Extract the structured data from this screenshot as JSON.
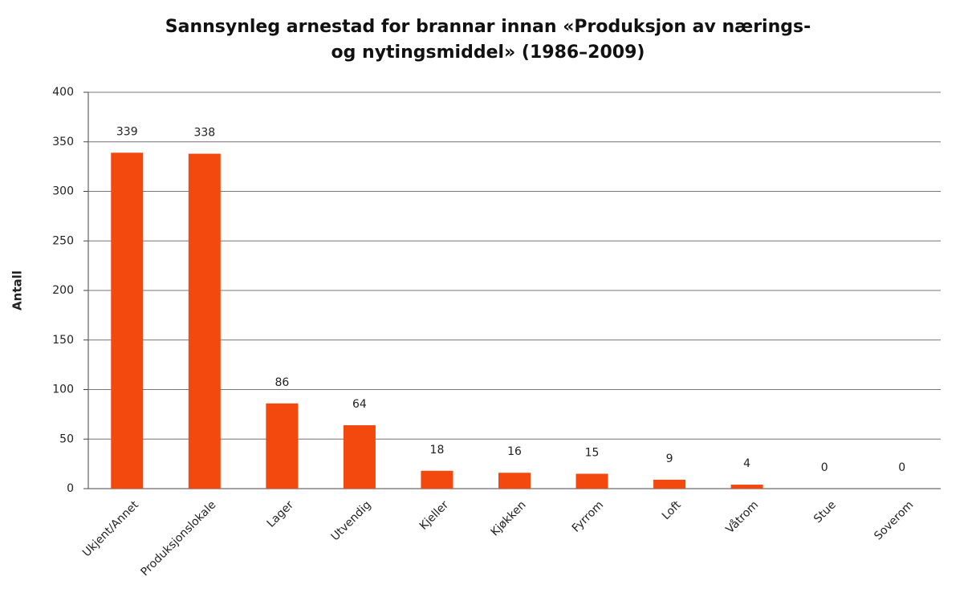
{
  "chart_data": {
    "type": "bar",
    "title": [
      "Sannsynleg arnestad for brannar innan «Produksjon av nærings-",
      "og nytingsmiddel» (1986–2009)"
    ],
    "y_label": "Antall",
    "categories": [
      "Ukjent/Annet",
      "Produksjonslokale",
      "Lager",
      "Utvendig",
      "Kjeller",
      "Kjøkken",
      "Fyrrom",
      "Loft",
      "Våtrom",
      "Stue",
      "Soverom"
    ],
    "values": [
      339,
      338,
      86,
      64,
      18,
      16,
      15,
      9,
      4,
      0,
      0
    ],
    "color": "#f4490e",
    "ylim": [
      0,
      400
    ],
    "yticks": [
      0,
      50,
      100,
      150,
      200,
      250,
      300,
      350,
      400
    ],
    "grid": true
  }
}
